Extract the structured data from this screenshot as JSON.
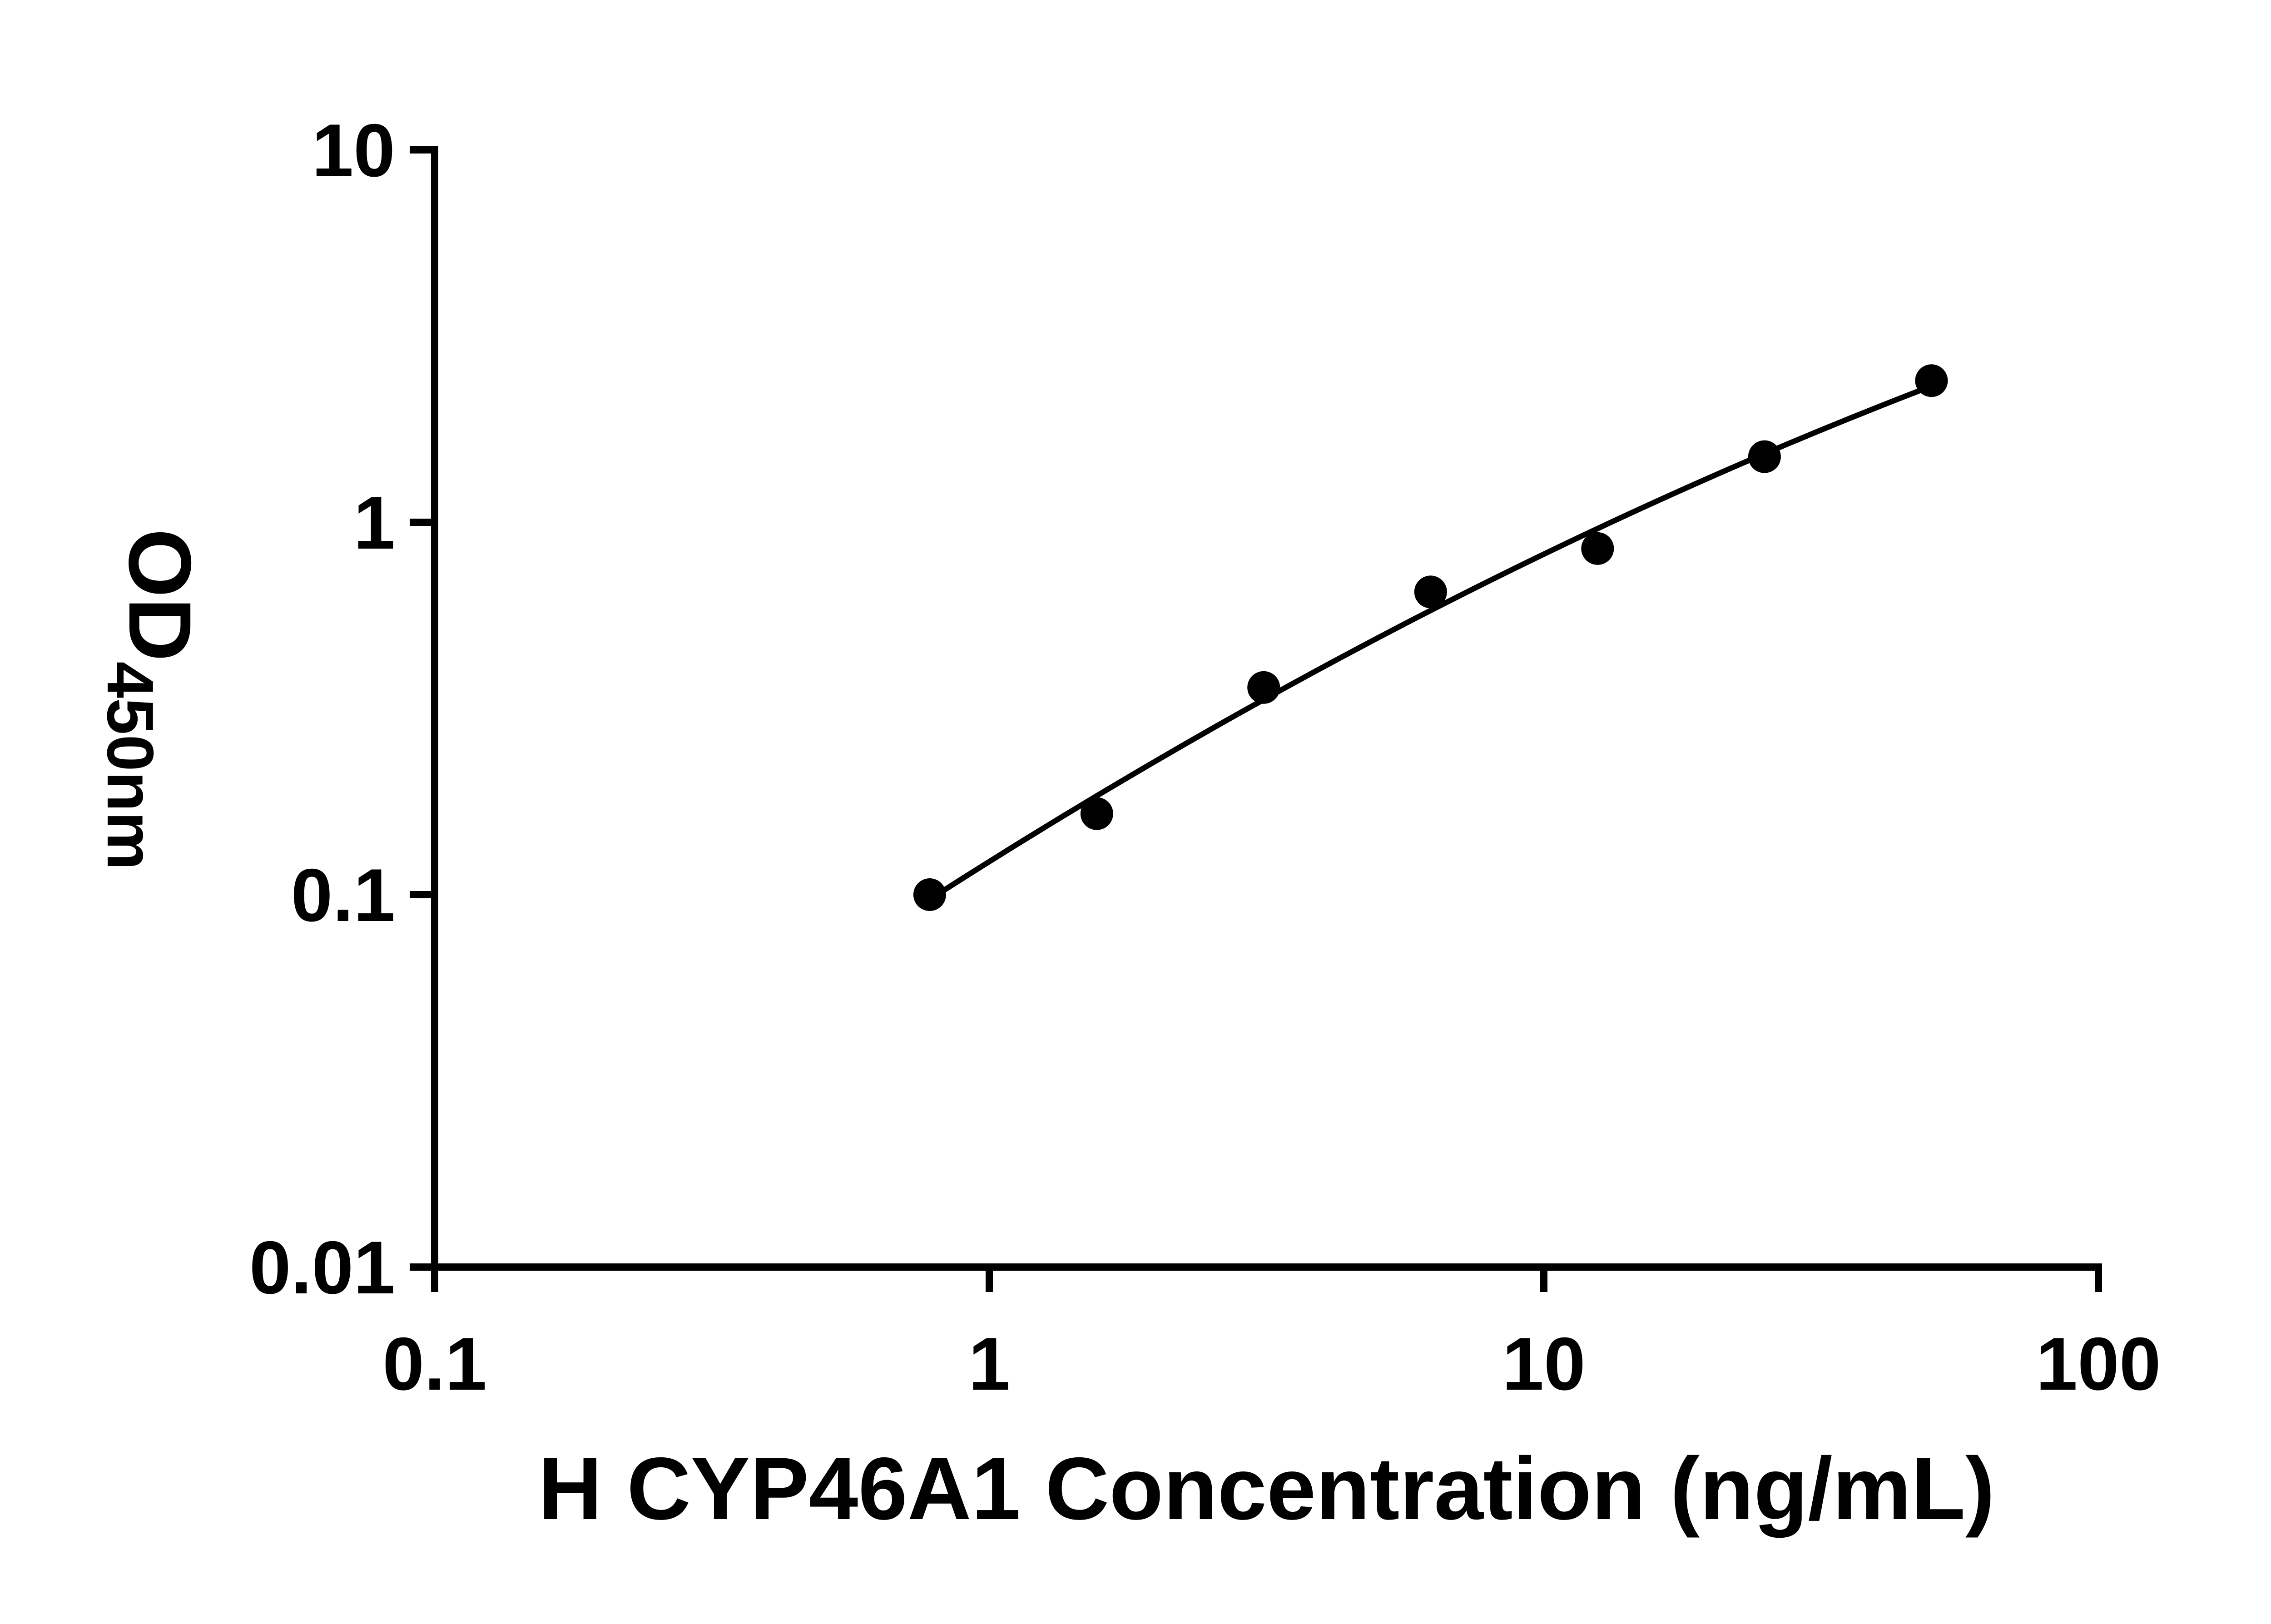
{
  "page": {
    "background": "#ffffff"
  },
  "colors": {
    "axis": "#000000",
    "marker": "#000000",
    "fit_line": "#000000",
    "text": "#000000",
    "background": "#ffffff"
  },
  "chart_data": {
    "type": "scatter",
    "subtype": "elisa-standard-curve",
    "title": "",
    "xlabel": "H CYP46A1 Concentration (ng/mL)",
    "ylabel": "OD",
    "ylabel_subscript": "450nm",
    "x_scale": "log10",
    "y_scale": "log10",
    "xlim": [
      0.1,
      100
    ],
    "ylim": [
      0.01,
      10
    ],
    "x_ticks": [
      0.1,
      1,
      10,
      100
    ],
    "x_tick_labels": [
      "0.1",
      "1",
      "10",
      "100"
    ],
    "y_ticks": [
      0.01,
      0.1,
      1,
      10
    ],
    "y_tick_labels": [
      "0.01",
      "0.1",
      "1",
      "10"
    ],
    "grid": false,
    "legend_position": "none",
    "series": [
      {
        "name": "standard-curve",
        "marker": "filled-circle",
        "x": [
          0.781,
          1.563,
          3.125,
          6.25,
          12.5,
          25,
          50
        ],
        "y": [
          0.1,
          0.165,
          0.36,
          0.65,
          0.85,
          1.5,
          2.4
        ],
        "fit": "quadratic-log-log"
      }
    ]
  }
}
